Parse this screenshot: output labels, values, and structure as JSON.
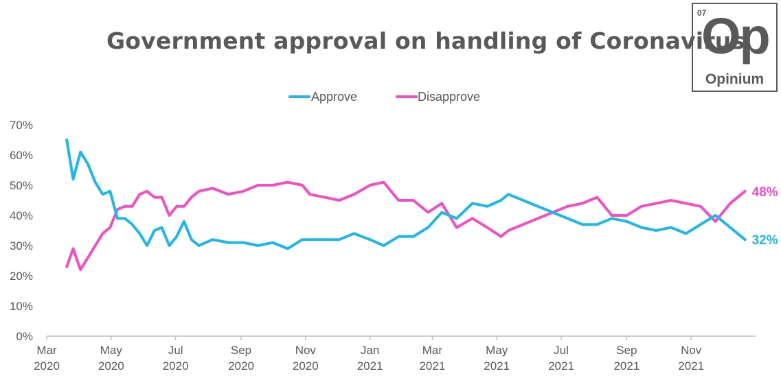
{
  "title": "Government approval on handling of Coronavirus",
  "logo": {
    "number": "07",
    "symbol": "Op",
    "name": "Opinium"
  },
  "colors": {
    "approve": "#1fb8e6",
    "disapprove": "#f24fc2",
    "text": "#595959",
    "axis": "#bfbfbf"
  },
  "chart_data": {
    "type": "line",
    "title": "Government approval on handling of Coronavirus",
    "legend_position": "top-center",
    "grid": false,
    "ylim": [
      0,
      70
    ],
    "y_ticks": [
      "0%",
      "10%",
      "20%",
      "30%",
      "40%",
      "50%",
      "60%",
      "70%"
    ],
    "y_tick_values": [
      0,
      10,
      20,
      30,
      40,
      50,
      60,
      70
    ],
    "x_ticks": [
      {
        "date": "2020-03-01",
        "label_month": "Mar",
        "label_year": "2020"
      },
      {
        "date": "2020-05-01",
        "label_month": "May",
        "label_year": "2020"
      },
      {
        "date": "2020-07-01",
        "label_month": "Jul",
        "label_year": "2020"
      },
      {
        "date": "2020-09-01",
        "label_month": "Sep",
        "label_year": "2020"
      },
      {
        "date": "2020-11-01",
        "label_month": "Nov",
        "label_year": "2020"
      },
      {
        "date": "2021-01-01",
        "label_month": "Jan",
        "label_year": "2021"
      },
      {
        "date": "2021-03-01",
        "label_month": "Mar",
        "label_year": "2021"
      },
      {
        "date": "2021-05-01",
        "label_month": "May",
        "label_year": "2021"
      },
      {
        "date": "2021-07-01",
        "label_month": "Jul",
        "label_year": "2021"
      },
      {
        "date": "2021-09-01",
        "label_month": "Sep",
        "label_year": "2021"
      },
      {
        "date": "2021-11-01",
        "label_month": "Nov",
        "label_year": "2021"
      }
    ],
    "xlim": [
      "2020-03-01",
      "2022-01-01"
    ],
    "x": [
      "2020-03-20",
      "2020-03-26",
      "2020-04-02",
      "2020-04-09",
      "2020-04-16",
      "2020-04-23",
      "2020-04-30",
      "2020-05-07",
      "2020-05-14",
      "2020-05-21",
      "2020-05-28",
      "2020-06-04",
      "2020-06-11",
      "2020-06-18",
      "2020-06-25",
      "2020-07-02",
      "2020-07-09",
      "2020-07-16",
      "2020-07-23",
      "2020-08-05",
      "2020-08-20",
      "2020-09-03",
      "2020-09-17",
      "2020-10-01",
      "2020-10-15",
      "2020-10-29",
      "2020-11-05",
      "2020-11-19",
      "2020-12-03",
      "2020-12-17",
      "2021-01-01",
      "2021-01-14",
      "2021-01-28",
      "2021-02-11",
      "2021-02-25",
      "2021-03-10",
      "2021-03-24",
      "2021-04-08",
      "2021-04-22",
      "2021-05-05",
      "2021-05-12",
      "2021-05-26",
      "2021-06-09",
      "2021-06-23",
      "2021-07-07",
      "2021-07-21",
      "2021-08-04",
      "2021-08-18",
      "2021-09-01",
      "2021-09-15",
      "2021-09-29",
      "2021-10-13",
      "2021-10-27",
      "2021-11-10",
      "2021-11-24",
      "2021-12-08",
      "2021-12-22"
    ],
    "series": [
      {
        "name": "Approve",
        "color": "#1fb8e6",
        "end_label": "32%",
        "values": [
          65,
          52,
          61,
          57,
          51,
          47,
          48,
          39,
          39,
          37,
          34,
          30,
          35,
          36,
          30,
          33,
          38,
          32,
          30,
          32,
          31,
          31,
          30,
          31,
          29,
          32,
          32,
          32,
          32,
          34,
          32,
          30,
          33,
          33,
          36,
          41,
          39,
          44,
          43,
          45,
          47,
          45,
          43,
          41,
          39,
          37,
          37,
          39,
          38,
          36,
          35,
          36,
          34,
          37,
          40,
          36,
          32
        ]
      },
      {
        "name": "Disapprove",
        "color": "#f24fc2",
        "end_label": "48%",
        "values": [
          23,
          29,
          22,
          26,
          30,
          34,
          36,
          42,
          43,
          43,
          47,
          48,
          46,
          46,
          40,
          43,
          43,
          46,
          48,
          49,
          47,
          48,
          50,
          50,
          51,
          50,
          47,
          46,
          45,
          47,
          50,
          51,
          45,
          45,
          41,
          44,
          36,
          39,
          36,
          33,
          35,
          37,
          39,
          41,
          43,
          44,
          46,
          40,
          40,
          43,
          44,
          45,
          44,
          43,
          38,
          44,
          48
        ]
      }
    ]
  }
}
